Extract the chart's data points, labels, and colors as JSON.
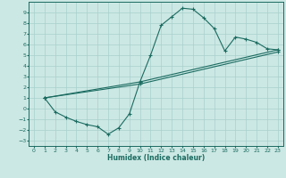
{
  "xlabel": "Humidex (Indice chaleur)",
  "xlim": [
    -0.5,
    23.5
  ],
  "ylim": [
    -3.5,
    10.0
  ],
  "xticks": [
    0,
    1,
    2,
    3,
    4,
    5,
    6,
    7,
    8,
    9,
    10,
    11,
    12,
    13,
    14,
    15,
    16,
    17,
    18,
    19,
    20,
    21,
    22,
    23
  ],
  "yticks": [
    -3,
    -2,
    -1,
    0,
    1,
    2,
    3,
    4,
    5,
    6,
    7,
    8,
    9
  ],
  "bg_color": "#cce8e4",
  "line_color": "#1a6b60",
  "grid_color": "#a8d0cc",
  "curve1_x": [
    1,
    2,
    3,
    4,
    5,
    6,
    7,
    8,
    9,
    10,
    11,
    12,
    13,
    14,
    15,
    16,
    17,
    18,
    19,
    20,
    21,
    22,
    23
  ],
  "curve1_y": [
    1.0,
    -0.3,
    -0.8,
    -1.2,
    -1.5,
    -1.7,
    -2.4,
    -1.8,
    -0.5,
    2.5,
    5.0,
    7.8,
    8.6,
    9.4,
    9.3,
    8.5,
    7.5,
    5.4,
    6.7,
    6.5,
    6.2,
    5.6,
    5.5
  ],
  "curve2_x": [
    1,
    10,
    23
  ],
  "curve2_y": [
    1.0,
    2.5,
    5.5
  ],
  "curve3_x": [
    1,
    10,
    23
  ],
  "curve3_y": [
    1.0,
    2.3,
    5.3
  ],
  "marker": "+"
}
